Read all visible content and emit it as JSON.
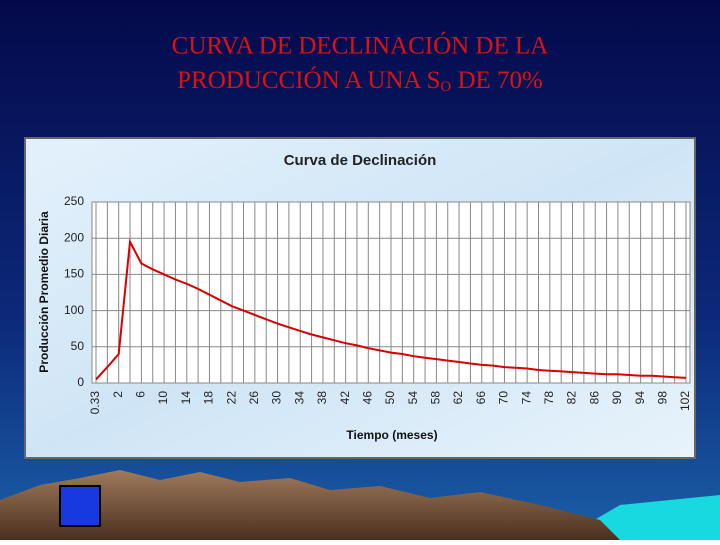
{
  "slide": {
    "title_line1": "CURVA DE DECLINACIÓN DE LA",
    "title_line2": "PRODUCCIÓN  A UNA S",
    "title_subscript": "O",
    "title_end": " DE 70%"
  },
  "chart_data": {
    "type": "line",
    "title": "Curva de Declinación",
    "x_label": "Tiempo (meses)",
    "y_label": "Producción Promedio Diaria",
    "categories": [
      "0.33",
      null,
      "2",
      null,
      "6",
      null,
      "10",
      null,
      "14",
      null,
      "18",
      null,
      "22",
      null,
      "26",
      null,
      "30",
      null,
      "34",
      null,
      "38",
      null,
      "42",
      null,
      "46",
      null,
      "50",
      null,
      "54",
      null,
      "58",
      null,
      "62",
      null,
      "66",
      null,
      "70",
      null,
      "74",
      null,
      "78",
      null,
      "82",
      null,
      "86",
      null,
      "90",
      null,
      "94",
      null,
      "98",
      null,
      "102"
    ],
    "values": [
      5,
      22,
      40,
      195,
      165,
      157,
      150,
      143,
      137,
      130,
      122,
      114,
      106,
      100,
      94,
      88,
      82,
      77,
      72,
      67,
      63,
      59,
      55,
      52,
      48,
      45,
      42,
      40,
      37,
      35,
      33,
      31,
      29,
      27,
      25,
      24,
      22,
      21,
      20,
      18,
      17,
      16,
      15,
      14,
      13,
      12,
      12,
      11,
      10,
      10,
      9,
      8,
      7
    ],
    "color": "#d80000",
    "ylim": [
      0,
      250
    ],
    "yticks": [
      0,
      50,
      100,
      150,
      200,
      250
    ],
    "grid": true
  }
}
